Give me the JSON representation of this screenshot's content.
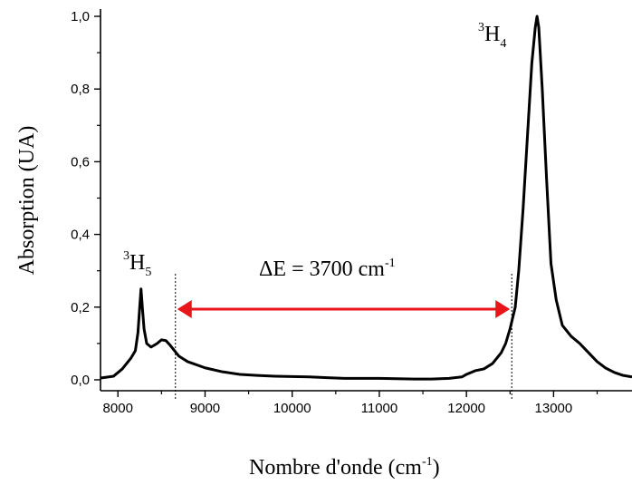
{
  "chart_data": {
    "type": "line",
    "xlabel_main": "Nombre d'onde (cm",
    "xlabel_sup": "-1",
    "xlabel_close": ")",
    "ylabel": "Absorption (UA)",
    "xlim": [
      7800,
      13900
    ],
    "ylim": [
      -0.03,
      1.02
    ],
    "x_ticks": [
      8000,
      9000,
      10000,
      11000,
      12000,
      13000
    ],
    "x_tick_labels": [
      "8000",
      "9000",
      "10000",
      "11000",
      "12000",
      "13000"
    ],
    "y_ticks": [
      0.0,
      0.2,
      0.4,
      0.6,
      0.8,
      1.0
    ],
    "y_tick_labels": [
      "0,0",
      "0,2",
      "0,4",
      "0,6",
      "0,8",
      "1,0"
    ],
    "series": [
      {
        "color": "#000000",
        "x": [
          7800,
          7950,
          8050,
          8150,
          8200,
          8230,
          8250,
          8265,
          8280,
          8300,
          8330,
          8380,
          8450,
          8500,
          8550,
          8600,
          8650,
          8700,
          8800,
          9000,
          9200,
          9400,
          9600,
          9800,
          10000,
          10200,
          10400,
          10600,
          10800,
          11000,
          11200,
          11400,
          11600,
          11800,
          11950,
          12000,
          12100,
          12200,
          12300,
          12400,
          12450,
          12500,
          12530,
          12560,
          12600,
          12650,
          12700,
          12750,
          12790,
          12810,
          12830,
          12870,
          12920,
          12970,
          13030,
          13100,
          13200,
          13300,
          13400,
          13500,
          13600,
          13700,
          13800,
          13900
        ],
        "y": [
          0.005,
          0.01,
          0.03,
          0.06,
          0.08,
          0.13,
          0.2,
          0.25,
          0.2,
          0.14,
          0.1,
          0.09,
          0.1,
          0.11,
          0.108,
          0.095,
          0.08,
          0.065,
          0.05,
          0.033,
          0.022,
          0.015,
          0.012,
          0.01,
          0.009,
          0.008,
          0.006,
          0.004,
          0.004,
          0.004,
          0.003,
          0.002,
          0.002,
          0.004,
          0.008,
          0.015,
          0.025,
          0.03,
          0.045,
          0.075,
          0.1,
          0.14,
          0.17,
          0.2,
          0.3,
          0.47,
          0.67,
          0.87,
          0.97,
          1.0,
          0.97,
          0.8,
          0.55,
          0.32,
          0.22,
          0.15,
          0.12,
          0.1,
          0.075,
          0.05,
          0.032,
          0.02,
          0.012,
          0.008
        ]
      }
    ],
    "annotations": {
      "peak1_sup": "3",
      "peak1_main": "H",
      "peak1_sub": "5",
      "peak2_sup": "3",
      "peak2_main": "H",
      "peak2_sub": "4",
      "delta_main": "ΔE = 3700 cm",
      "delta_sup": "-1",
      "arrow_color": "#e8151b"
    },
    "markers": {
      "left_x": 8660,
      "right_x": 12520
    }
  }
}
